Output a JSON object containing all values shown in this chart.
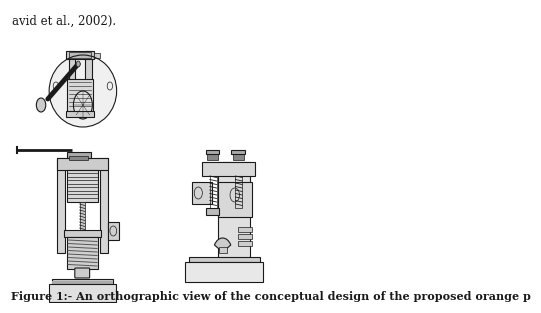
{
  "title": "Figure 1:- An orthographic view of the conceptual design of the proposed orange p",
  "title_fontsize": 8.0,
  "title_fontweight": "bold",
  "bg_color": "#ffffff",
  "line_color": "#1a1a1a",
  "header_text": "avid et al., 2002).",
  "header_fontsize": 8.5
}
